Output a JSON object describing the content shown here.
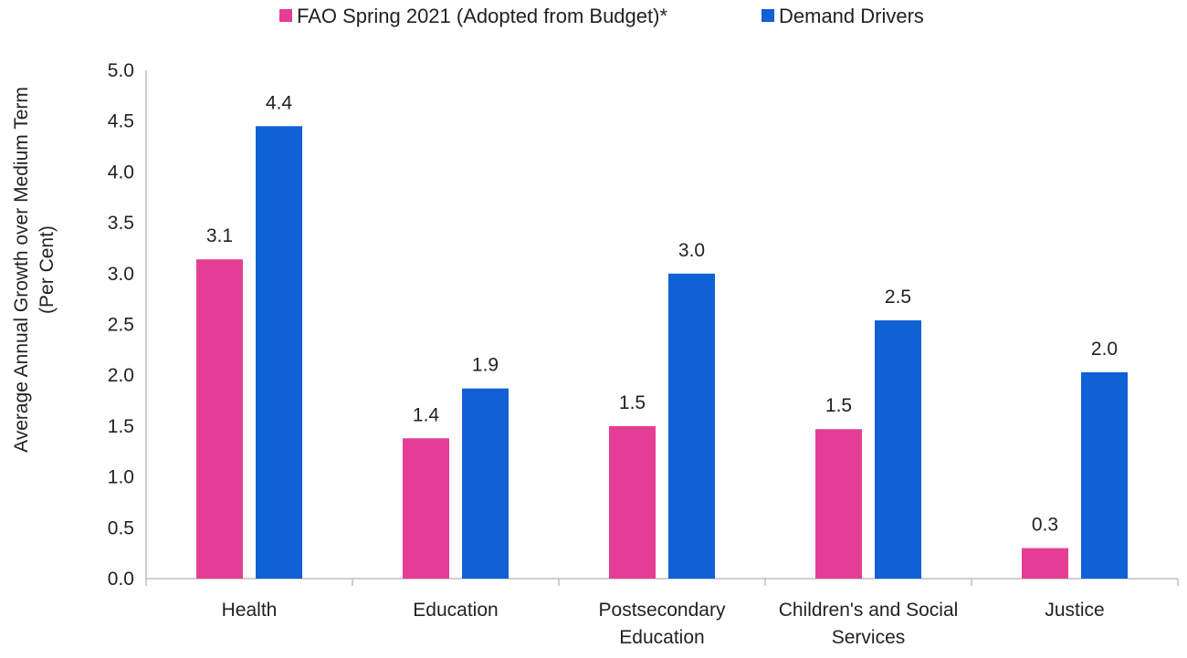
{
  "chart_data": {
    "type": "bar",
    "categories": [
      [
        "Health"
      ],
      [
        "Education"
      ],
      [
        "Postsecondary",
        "Education"
      ],
      [
        "Children's and Social",
        "Services"
      ],
      [
        "Justice"
      ]
    ],
    "series": [
      {
        "name": "FAO Spring 2021 (Adopted from Budget)*",
        "color": "#E43D95",
        "values": [
          3.14,
          1.38,
          1.5,
          1.47,
          0.3
        ],
        "labels": [
          "3.1",
          "1.4",
          "1.5",
          "1.5",
          "0.3"
        ]
      },
      {
        "name": "Demand Drivers",
        "color": "#1060D6",
        "values": [
          4.45,
          1.87,
          3.0,
          2.54,
          2.03
        ],
        "labels": [
          "4.4",
          "1.9",
          "3.0",
          "2.5",
          "2.0"
        ]
      }
    ],
    "ylabel": [
      "Average Annual Growth over Medium Term",
      "(Per Cent)"
    ],
    "ylim": [
      0,
      5
    ],
    "yticks": [
      "0.0",
      "0.5",
      "1.0",
      "1.5",
      "2.0",
      "2.5",
      "3.0",
      "3.5",
      "4.0",
      "4.5",
      "5.0"
    ],
    "grid": false,
    "legend_position": "top-center"
  }
}
